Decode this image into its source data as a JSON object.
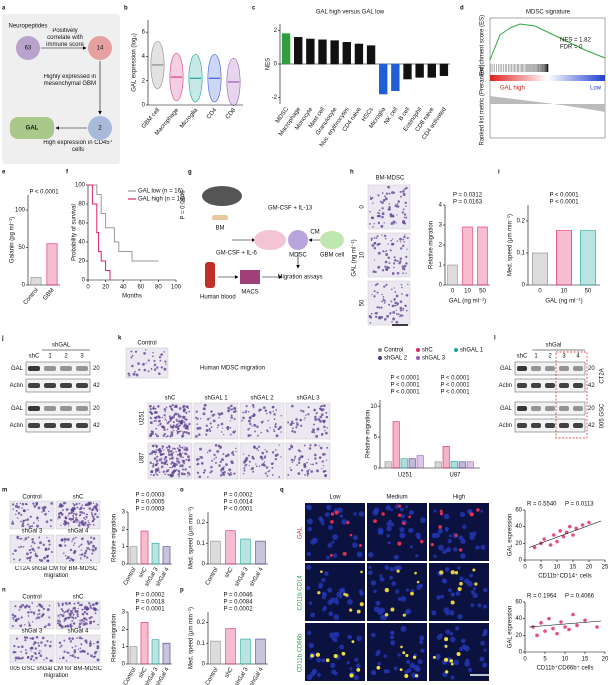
{
  "a": {
    "label": "a",
    "start": "Neuropeptides",
    "counts": [
      63,
      14,
      2
    ],
    "steps": [
      "Positively correlate with immune score",
      "Highly expressed in mesenchymal GBM",
      "High expression in CD45⁺ cells"
    ],
    "end": "GAL"
  },
  "b": {
    "label": "b",
    "ylabel": "GAL expression (log₂)",
    "yticks": [
      0,
      2,
      4,
      6
    ],
    "ylim": [
      0,
      7
    ],
    "categories": [
      "GBM cell",
      "Macrophage",
      "Microglia",
      "CD4",
      "CD8"
    ],
    "medians": [
      3.3,
      2.3,
      2.2,
      2.2,
      1.9
    ],
    "colors": [
      "#8a8a8a",
      "#d43f8d",
      "#1aa39a",
      "#3b5bdb",
      "#9b59b6"
    ]
  },
  "c": {
    "label": "c",
    "title": "GAL high versus GAL low",
    "ylabel": "NES",
    "yticks": [
      -2,
      0,
      2
    ],
    "ylim": [
      -2.4,
      2.4
    ],
    "categories": [
      "MDSC",
      "Macrophage",
      "Monocyte",
      "Mast cell",
      "Granulocyte",
      "Nuc. erythrocytes",
      "CD4 naive",
      "HSCs",
      "Microglia",
      "NK cell",
      "B cell",
      "Eosinophil",
      "CD8 naive",
      "CD4 activated"
    ],
    "values": [
      1.82,
      1.6,
      1.5,
      1.45,
      1.4,
      1.3,
      1.2,
      1.1,
      -1.8,
      -1.6,
      -0.9,
      -0.8,
      -0.8,
      -0.7
    ],
    "colors": [
      "#2e9e3e",
      "#111",
      "#111",
      "#111",
      "#111",
      "#111",
      "#111",
      "#111",
      "#1f5fd6",
      "#1f5fd6",
      "#111",
      "#111",
      "#111",
      "#111"
    ]
  },
  "d": {
    "label": "d",
    "title": "MDSC signature",
    "ylabel": "Enrichment score (ES)",
    "ylabel2": "Ranked list metric (Preranked)",
    "nes": "NES = 1.82",
    "fdr": "FDR = 0",
    "left": "GAL high",
    "right": "Low"
  },
  "e": {
    "label": "e",
    "ylabel": "Galanin (pg ml⁻¹)",
    "yticks": [
      0,
      50,
      100
    ],
    "ylim": [
      0,
      120
    ],
    "categories": [
      "Control",
      "GBM"
    ],
    "values": [
      10,
      55
    ],
    "colors": [
      "#8a8a8a",
      "#e0245e"
    ],
    "pvalues": [
      "P < 0.0001"
    ]
  },
  "f": {
    "label": "f",
    "ylabel": "Probability of survival",
    "xlabel": "Months",
    "pvalue": "P = 0.0446",
    "yticks": [
      0,
      20,
      40,
      60,
      80,
      100
    ],
    "ylim": [
      0,
      100
    ],
    "xticks": [
      0,
      20,
      40,
      60,
      80,
      100
    ],
    "xlim": [
      0,
      100
    ],
    "series": [
      {
        "name": "GAL low (n = 16)",
        "color": "#999",
        "x": [
          0,
          10,
          15,
          20,
          30,
          35,
          50,
          80
        ],
        "values": [
          100,
          90,
          70,
          55,
          40,
          30,
          20,
          20
        ]
      },
      {
        "name": "GAL high (n = 16)",
        "color": "#e0245e",
        "x": [
          0,
          5,
          10,
          12,
          15,
          20,
          25
        ],
        "values": [
          100,
          80,
          50,
          30,
          20,
          10,
          0
        ]
      }
    ]
  },
  "g": {
    "label": "g",
    "bm": "BM",
    "cyto1": "GM-CSF + IL-13",
    "cm": "CM",
    "cyto2": "GM-CSF + IL-6",
    "mdsc": "MDSC",
    "gbm": "GBM cell",
    "blood": "Human blood",
    "macs": "MACS",
    "assay": "Migration assays"
  },
  "h": {
    "label": "h",
    "title": "BM-MDSC",
    "rows": [
      "0",
      "10",
      "50"
    ],
    "rowlabel": "GAL (ng ml⁻¹)",
    "chart": {
      "ylabel": "Relative migration",
      "xlabel": "GAL (ng ml⁻¹)",
      "yticks": [
        0,
        1,
        2,
        3,
        4
      ],
      "ylim": [
        0,
        4
      ],
      "categories": [
        "0",
        "10",
        "50"
      ],
      "values": [
        1,
        2.9,
        2.9
      ],
      "colors": [
        "#8a8a8a",
        "#e0245e",
        "#e0245e"
      ],
      "pvalues": [
        "P = 0.0312",
        "P = 0.0163"
      ]
    }
  },
  "i": {
    "label": "i",
    "ylabel": "Med. speed (μm min⁻¹)",
    "xlabel": "GAL (ng ml⁻¹)",
    "yticks": [
      0,
      0.1,
      0.2
    ],
    "ylim": [
      0,
      0.25
    ],
    "categories": [
      "0",
      "10",
      "50"
    ],
    "values": [
      0.1,
      0.17,
      0.17
    ],
    "colors": [
      "#8a8a8a",
      "#e0245e",
      "#1aa39a"
    ],
    "pvalues": [
      "P < 0.0001",
      "P < 0.0001"
    ]
  },
  "j": {
    "label": "j",
    "group": "shGAL",
    "lanes": [
      "shC",
      "1",
      "2",
      "3"
    ],
    "rows": [
      "GAL",
      "Actin",
      "GAL",
      "Actin"
    ],
    "kda": [
      "20",
      "42",
      "20",
      "42"
    ]
  },
  "k": {
    "label": "k",
    "control": "Control",
    "title": "Human MDSC migration",
    "cols": [
      "shC",
      "shGAL 1",
      "shGAL 2",
      "shGAL 3"
    ],
    "rows": [
      "U251",
      "U87"
    ],
    "ylabel": "Relative migration",
    "yticks": [
      0,
      5,
      10
    ],
    "ylim": [
      0,
      11
    ],
    "categories": [
      "U251",
      "U87"
    ],
    "series": [
      {
        "name": "Control",
        "color": "#8a8a8a",
        "values": [
          1,
          1
        ]
      },
      {
        "name": "shC",
        "color": "#e0245e",
        "values": [
          7.5,
          3.5
        ]
      },
      {
        "name": "shGAL 1",
        "color": "#1aa39a",
        "values": [
          1.5,
          1.1
        ]
      },
      {
        "name": "shGAL 2",
        "color": "#4b3a8c",
        "values": [
          1.5,
          1
        ]
      },
      {
        "name": "shGAL 3",
        "color": "#9b59b6",
        "values": [
          2,
          1
        ]
      }
    ],
    "pvalues": [
      [
        "P < 0.0001",
        "P < 0.0001",
        "P < 0.0001"
      ],
      [
        "P < 0.0001",
        "P < 0.0001",
        "P < 0.0001"
      ]
    ]
  },
  "l": {
    "label": "l",
    "group": "shGal",
    "lanes": [
      "shC",
      "1",
      "2",
      "3",
      "4"
    ],
    "rows": [
      "GAL",
      "Actin",
      "GAL",
      "Actin"
    ],
    "kda": [
      "20",
      "42",
      "20",
      "42"
    ],
    "lines": [
      "CT2A",
      "005 GSC"
    ]
  },
  "m": {
    "label": "m",
    "images": [
      "Control",
      "shC",
      "shGal 3",
      "shGal 4"
    ],
    "caption": "CT2A shGal CM for BM-MDSC migration",
    "chart": {
      "ylabel": "Relative migration",
      "yticks": [
        0,
        1,
        2,
        3
      ],
      "ylim": [
        0,
        3
      ],
      "categories": [
        "Control",
        "shC",
        "shGal 3",
        "shGal 4"
      ],
      "values": [
        1,
        1.9,
        1.2,
        1
      ],
      "colors": [
        "#8a8a8a",
        "#e0245e",
        "#1aa39a",
        "#4b3a8c"
      ],
      "pvalues": [
        "P = 0.0003",
        "P = 0.0005",
        "P = 0.0003"
      ]
    }
  },
  "n": {
    "label": "n",
    "images": [
      "Control",
      "shC",
      "shGal 3",
      "shGal 4"
    ],
    "caption": "005 GSC shGal CM for BM-MDSC migration",
    "chart": {
      "ylabel": "Relative migration",
      "yticks": [
        0,
        1,
        2,
        3
      ],
      "ylim": [
        0,
        3
      ],
      "categories": [
        "Control",
        "shC",
        "shGal 3",
        "shGal 4"
      ],
      "values": [
        1,
        2.4,
        1.4,
        1.2
      ],
      "colors": [
        "#8a8a8a",
        "#e0245e",
        "#1aa39a",
        "#4b3a8c"
      ],
      "pvalues": [
        "P = 0.0002",
        "P = 0.0018",
        "P < 0.0001"
      ]
    }
  },
  "o": {
    "label": "o",
    "ylabel": "Med. speed (μm min⁻¹)",
    "yticks": [
      0,
      0.1,
      0.2
    ],
    "ylim": [
      0,
      0.25
    ],
    "categories": [
      "Control",
      "shC",
      "shGal 3",
      "shGal 4"
    ],
    "values": [
      0.11,
      0.16,
      0.12,
      0.11
    ],
    "colors": [
      "#8a8a8a",
      "#e0245e",
      "#1aa39a",
      "#4b3a8c"
    ],
    "pvalues": [
      "P = 0.0002",
      "P = 0.0014",
      "P < 0.0001"
    ]
  },
  "p": {
    "label": "p",
    "ylabel": "Med. speed (μm min⁻¹)",
    "yticks": [
      0,
      0.1,
      0.2
    ],
    "ylim": [
      0,
      0.25
    ],
    "categories": [
      "Control",
      "shC",
      "shGal 3",
      "shGal 4"
    ],
    "values": [
      0.11,
      0.17,
      0.12,
      0.12
    ],
    "colors": [
      "#8a8a8a",
      "#e0245e",
      "#1aa39a",
      "#4b3a8c"
    ],
    "pvalues": [
      "P = 0.0046",
      "P = 0.0084",
      "P = 0.0002"
    ]
  },
  "q": {
    "label": "q",
    "cols": [
      "Low",
      "Medium",
      "High"
    ],
    "rows": [
      "GAL",
      "CD11b CD14",
      "CD11b CD66b"
    ],
    "plots": [
      {
        "r": "R = 0.5540",
        "p": "P = 0.0113",
        "ylabel": "GAL expression",
        "xlabel": "CD11b⁺CD14⁺ cells",
        "xticks": [
          0,
          5,
          10,
          15,
          20,
          25
        ],
        "xlim": [
          0,
          25
        ],
        "yticks": [
          0,
          20,
          40,
          60
        ],
        "ylim": [
          0,
          60
        ],
        "x": [
          3,
          5,
          6,
          8,
          9,
          10,
          11,
          12,
          13,
          14,
          15,
          16,
          18,
          20
        ],
        "y": [
          15,
          20,
          25,
          18,
          30,
          22,
          35,
          28,
          33,
          40,
          30,
          38,
          42,
          45
        ]
      },
      {
        "r": "R = 0.1964",
        "p": "P = 0.4066",
        "ylabel": "GAL expression",
        "xlabel": "CD11b⁺CD66b⁺ cells",
        "xticks": [
          0,
          5,
          10,
          15,
          20
        ],
        "xlim": [
          0,
          20
        ],
        "yticks": [
          0,
          20,
          40,
          60
        ],
        "ylim": [
          0,
          60
        ],
        "x": [
          2,
          3,
          4,
          5,
          6,
          7,
          8,
          9,
          10,
          11,
          12,
          13,
          15,
          18
        ],
        "y": [
          30,
          20,
          35,
          25,
          40,
          28,
          22,
          36,
          30,
          27,
          45,
          32,
          38,
          30
        ]
      }
    ]
  }
}
